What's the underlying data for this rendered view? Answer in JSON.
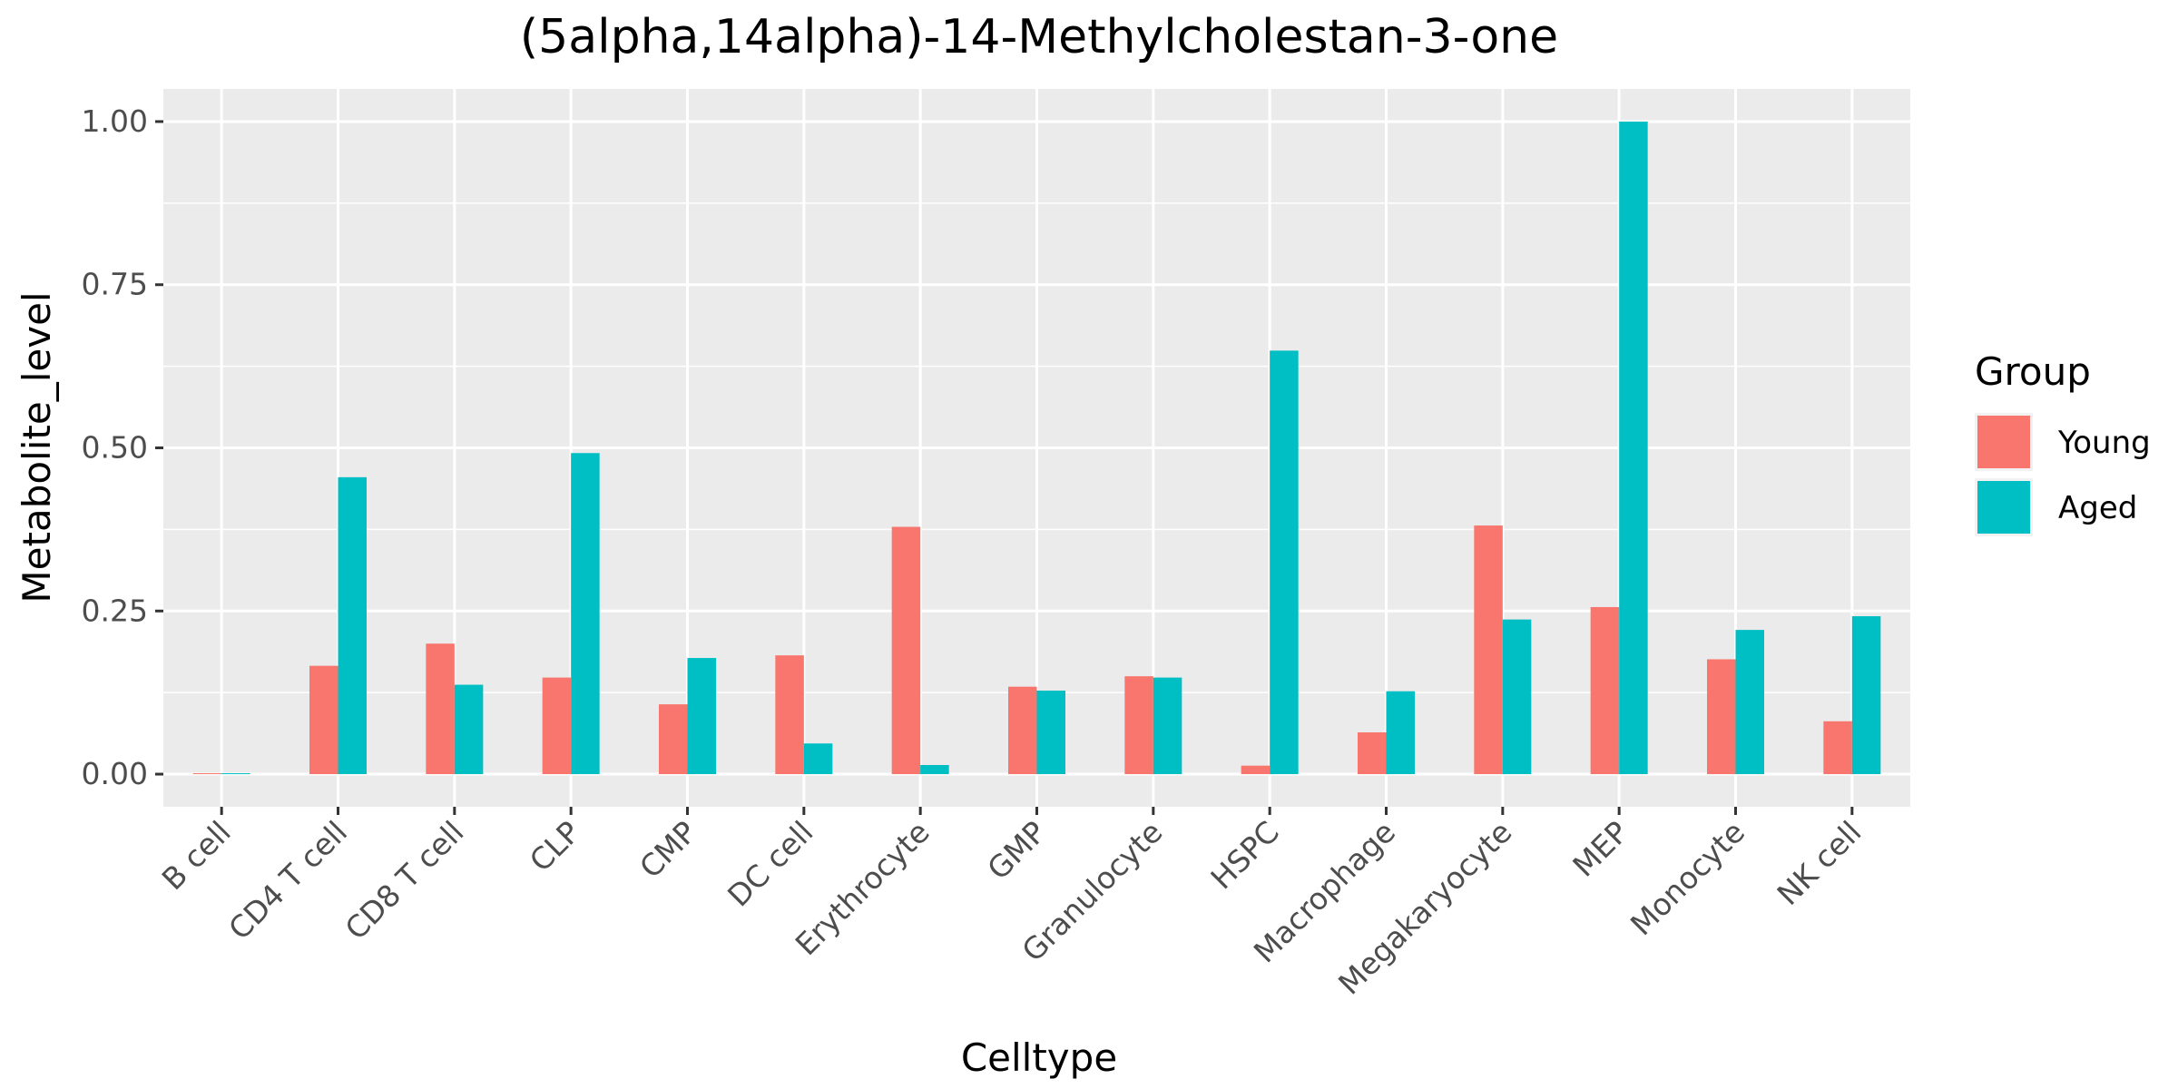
{
  "chart_data": {
    "type": "bar",
    "title": "(5alpha,14alpha)-14-Methylcholestan-3-one",
    "xlabel": "Celltype",
    "ylabel": "Metabolite_level",
    "categories": [
      "B cell",
      "CD4 T cell",
      "CD8 T cell",
      "CLP",
      "CMP",
      "DC cell",
      "Erythrocyte",
      "GMP",
      "Granulocyte",
      "HSPC",
      "Macrophage",
      "Megakaryocyte",
      "MEP",
      "Monocyte",
      "NK cell"
    ],
    "series": [
      {
        "name": "Young",
        "color": "#F8766D",
        "values": [
          0.001,
          0.166,
          0.2,
          0.148,
          0.107,
          0.182,
          0.379,
          0.134,
          0.15,
          0.013,
          0.064,
          0.381,
          0.256,
          0.176,
          0.081
        ]
      },
      {
        "name": "Aged",
        "color": "#00BFC4",
        "values": [
          0.0,
          0.455,
          0.137,
          0.492,
          0.178,
          0.047,
          0.014,
          0.128,
          0.148,
          0.649,
          0.127,
          0.237,
          1.0,
          0.221,
          0.242
        ]
      }
    ],
    "ylim": [
      -0.05,
      1.05
    ],
    "yticks": [
      0.0,
      0.25,
      0.5,
      0.75,
      1.0
    ],
    "ytick_labels": [
      "0.00",
      "0.25",
      "0.50",
      "0.75",
      "1.00"
    ],
    "grid": true,
    "legend": {
      "title": "Group",
      "position": "right"
    },
    "panel_background": "#EBEBEB",
    "grid_color": "#FFFFFF"
  }
}
